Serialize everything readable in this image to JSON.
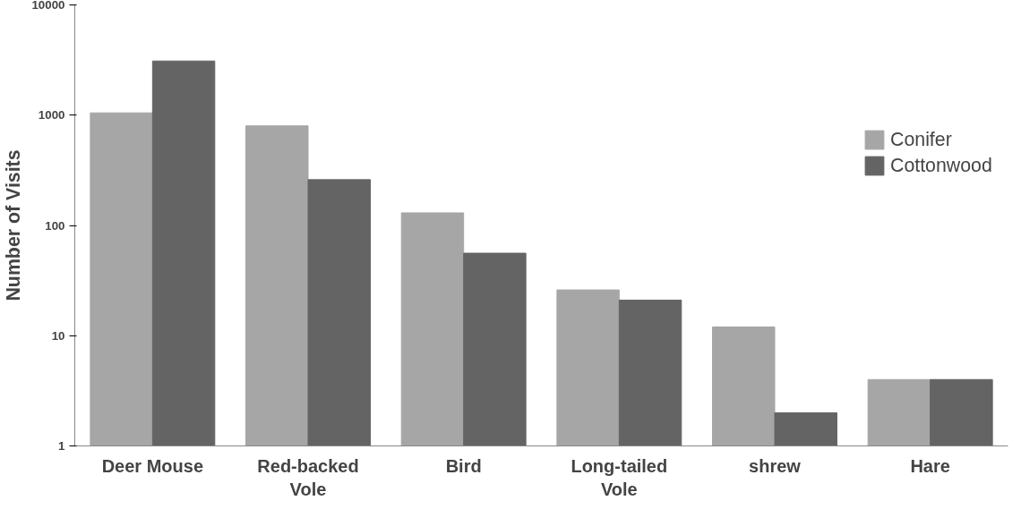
{
  "chart_data": {
    "type": "bar",
    "ylabel": "Number of Visits",
    "categories": [
      "Deer Mouse",
      "Red-backed\nVole",
      "Bird",
      "Long-tailed\nVole",
      "shrew",
      "Hare"
    ],
    "series": [
      {
        "name": "Conifer",
        "color": "#a6a6a6",
        "values": [
          1050,
          800,
          130,
          26,
          12,
          4
        ]
      },
      {
        "name": "Cottonwood",
        "color": "#646464",
        "values": [
          3100,
          260,
          56,
          21,
          2,
          4
        ]
      }
    ],
    "log": true,
    "ylim": [
      1,
      10000
    ],
    "yticks": [
      1,
      10,
      100,
      1000,
      10000
    ],
    "grid": false,
    "legend": "right"
  }
}
